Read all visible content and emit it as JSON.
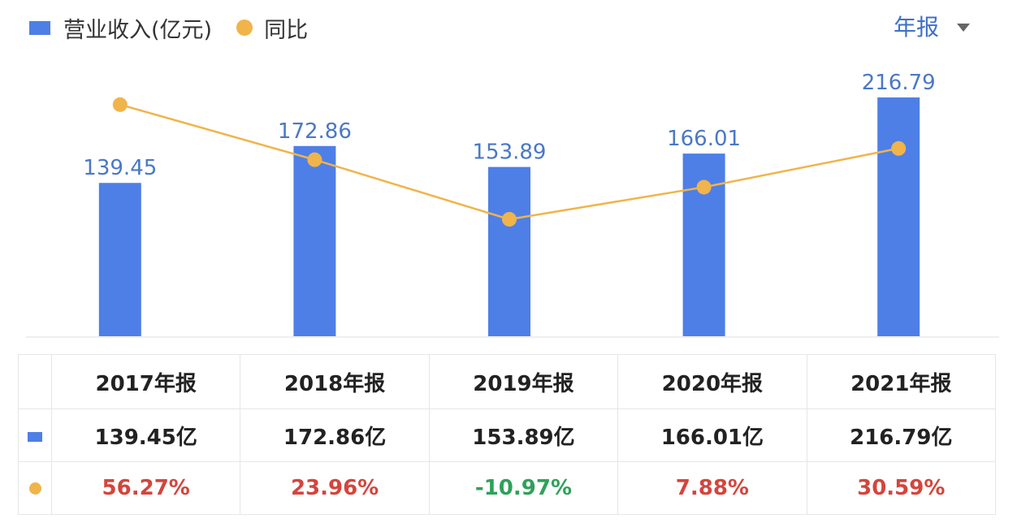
{
  "legend": {
    "bar_label": "营业收入(亿元)",
    "line_label": "同比"
  },
  "period_selector": {
    "label": "年报"
  },
  "colors": {
    "bar": "#4e7fe6",
    "line": "#f0b44a",
    "value_label": "#4a78c6",
    "positive": "#d4453c",
    "negative": "#2fa15a"
  },
  "chart_data": {
    "type": "bar",
    "categories": [
      "2017年报",
      "2018年报",
      "2019年报",
      "2020年报",
      "2021年报"
    ],
    "series": [
      {
        "name": "营业收入(亿元)",
        "type": "bar",
        "values": [
          139.45,
          172.86,
          153.89,
          166.01,
          216.79
        ]
      },
      {
        "name": "同比",
        "type": "line",
        "values": [
          56.27,
          23.96,
          -10.97,
          7.88,
          30.59
        ]
      }
    ],
    "bar_value_labels": [
      "139.45",
      "172.86",
      "153.89",
      "166.01",
      "216.79"
    ],
    "bar_ylim": [
      0,
      216.79
    ],
    "line_ylim": [
      -80,
      70
    ],
    "grid": false,
    "legend_position": "top-left"
  },
  "table": {
    "headers": [
      "2017年报",
      "2018年报",
      "2019年报",
      "2020年报",
      "2021年报"
    ],
    "revenue_row": [
      "139.45亿",
      "172.86亿",
      "153.89亿",
      "166.01亿",
      "216.79亿"
    ],
    "yoy_row": [
      "56.27%",
      "23.96%",
      "-10.97%",
      "7.88%",
      "30.59%"
    ]
  }
}
